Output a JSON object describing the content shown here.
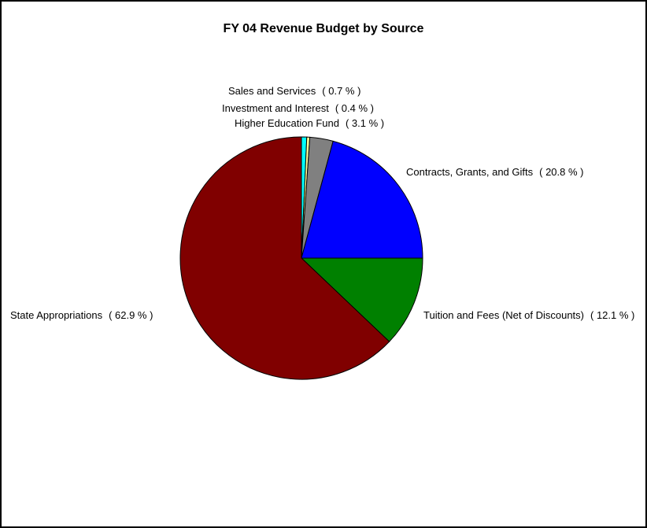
{
  "chart_data": {
    "type": "pie",
    "title": "FY 04 Revenue Budget by Source",
    "categories": [
      "Sales and Services",
      "Investment and Interest",
      "Higher Education Fund",
      "Contracts, Grants, and Gifts",
      "Tuition and Fees (Net of Discounts)",
      "State Appropriations"
    ],
    "values": [
      0.7,
      0.4,
      3.1,
      20.8,
      12.1,
      62.9
    ],
    "value_labels": [
      "( 0.7 % )",
      "( 0.4 % )",
      "( 3.1 % )",
      "( 20.8 % )",
      "( 12.1 % )",
      "( 62.9 % )"
    ],
    "colors": [
      "#00ffff",
      "#ffff99",
      "#808080",
      "#0000ff",
      "#008000",
      "#800000"
    ]
  }
}
